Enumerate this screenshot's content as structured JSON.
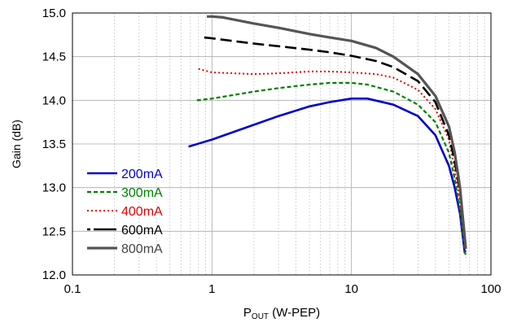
{
  "chart_data": {
    "type": "line",
    "title": "",
    "xlabel_main": "P",
    "xlabel_sub": "OUT",
    "xlabel_rest": " (W-PEP)",
    "ylabel": "Gain (dB)",
    "x_scale": "log",
    "xlim": [
      0.1,
      100
    ],
    "ylim": [
      12.0,
      15.0
    ],
    "x_ticks": [
      0.1,
      1,
      10,
      100
    ],
    "x_tick_labels": [
      "0.1",
      "1",
      "10",
      "100"
    ],
    "y_ticks": [
      12.0,
      12.5,
      13.0,
      13.5,
      14.0,
      14.5,
      15.0
    ],
    "y_tick_labels": [
      "12.0",
      "12.5",
      "13.0",
      "13.5",
      "14.0",
      "14.5",
      "15.0"
    ],
    "grid": true,
    "legend_position": "bottom-left",
    "series": [
      {
        "name": "200mA",
        "color": "#0000cc",
        "dash": "solid",
        "points": [
          [
            0.68,
            13.47
          ],
          [
            1.0,
            13.55
          ],
          [
            2.0,
            13.72
          ],
          [
            3.0,
            13.82
          ],
          [
            5.0,
            13.93
          ],
          [
            7.0,
            13.98
          ],
          [
            10.0,
            14.02
          ],
          [
            13.0,
            14.02
          ],
          [
            20.0,
            13.95
          ],
          [
            30.0,
            13.82
          ],
          [
            40.0,
            13.6
          ],
          [
            50.0,
            13.25
          ],
          [
            55.0,
            13.0
          ],
          [
            60.0,
            12.7
          ],
          [
            65.0,
            12.25
          ]
        ]
      },
      {
        "name": "300mA",
        "color": "#008000",
        "dash": "dash",
        "points": [
          [
            0.78,
            14.0
          ],
          [
            1.0,
            14.02
          ],
          [
            2.0,
            14.1
          ],
          [
            3.0,
            14.14
          ],
          [
            5.0,
            14.18
          ],
          [
            7.0,
            14.2
          ],
          [
            10.0,
            14.2
          ],
          [
            13.0,
            14.18
          ],
          [
            20.0,
            14.1
          ],
          [
            30.0,
            13.95
          ],
          [
            40.0,
            13.75
          ],
          [
            50.0,
            13.4
          ],
          [
            55.0,
            13.1
          ],
          [
            60.0,
            12.75
          ],
          [
            66.0,
            12.2
          ]
        ]
      },
      {
        "name": "400mA",
        "color": "#dd0000",
        "dash": "dot",
        "points": [
          [
            0.8,
            14.36
          ],
          [
            1.0,
            14.32
          ],
          [
            2.0,
            14.3
          ],
          [
            3.0,
            14.31
          ],
          [
            5.0,
            14.33
          ],
          [
            7.0,
            14.33
          ],
          [
            10.0,
            14.32
          ],
          [
            15.0,
            14.3
          ],
          [
            20.0,
            14.26
          ],
          [
            30.0,
            14.12
          ],
          [
            40.0,
            13.9
          ],
          [
            50.0,
            13.55
          ],
          [
            55.0,
            13.2
          ],
          [
            60.0,
            12.85
          ],
          [
            66.0,
            12.25
          ]
        ]
      },
      {
        "name": "600mA",
        "color": "#000000",
        "dash": "longdash",
        "points": [
          [
            0.88,
            14.72
          ],
          [
            1.0,
            14.71
          ],
          [
            2.0,
            14.65
          ],
          [
            3.0,
            14.62
          ],
          [
            5.0,
            14.58
          ],
          [
            7.0,
            14.55
          ],
          [
            10.0,
            14.51
          ],
          [
            15.0,
            14.45
          ],
          [
            20.0,
            14.38
          ],
          [
            30.0,
            14.22
          ],
          [
            40.0,
            13.98
          ],
          [
            50.0,
            13.6
          ],
          [
            55.0,
            13.3
          ],
          [
            60.0,
            12.95
          ],
          [
            66.0,
            12.3
          ]
        ]
      },
      {
        "name": "800mA",
        "color": "#555555",
        "dash": "solid-thick",
        "points": [
          [
            0.92,
            14.96
          ],
          [
            1.0,
            14.96
          ],
          [
            1.2,
            14.95
          ],
          [
            2.0,
            14.88
          ],
          [
            3.0,
            14.83
          ],
          [
            5.0,
            14.76
          ],
          [
            7.0,
            14.72
          ],
          [
            10.0,
            14.68
          ],
          [
            15.0,
            14.6
          ],
          [
            20.0,
            14.5
          ],
          [
            30.0,
            14.3
          ],
          [
            40.0,
            14.05
          ],
          [
            50.0,
            13.7
          ],
          [
            55.0,
            13.4
          ],
          [
            60.0,
            13.0
          ],
          [
            66.0,
            12.3
          ]
        ]
      }
    ]
  }
}
